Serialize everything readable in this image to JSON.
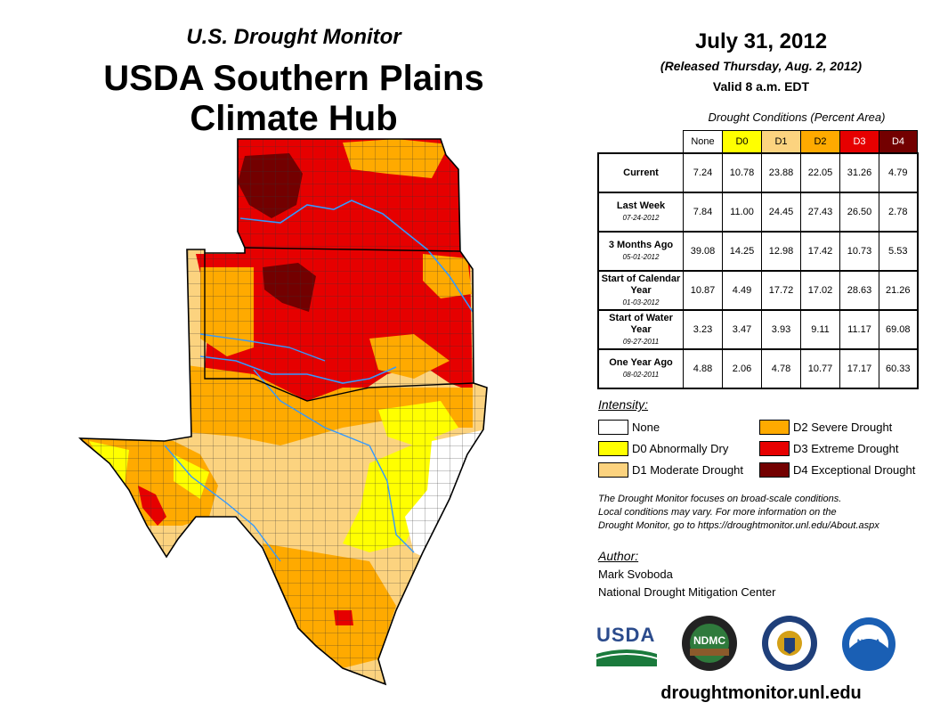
{
  "header": {
    "series": "U.S. Drought Monitor",
    "title_line1": "USDA Southern Plains",
    "title_line2": "Climate Hub"
  },
  "info": {
    "date": "July 31, 2012",
    "released": "(Released Thursday, Aug. 2, 2012)",
    "valid": "Valid 8 a.m. EDT"
  },
  "table": {
    "caption": "Drought Conditions (Percent Area)",
    "columns": [
      "None",
      "D0",
      "D1",
      "D2",
      "D3",
      "D4"
    ],
    "rows": [
      {
        "label": "Current",
        "date": "",
        "values": [
          "7.24",
          "10.78",
          "23.88",
          "22.05",
          "31.26",
          "4.79"
        ]
      },
      {
        "label": "Last Week",
        "date": "07-24-2012",
        "values": [
          "7.84",
          "11.00",
          "24.45",
          "27.43",
          "26.50",
          "2.78"
        ]
      },
      {
        "label": "3 Months Ago",
        "date": "05-01-2012",
        "values": [
          "39.08",
          "14.25",
          "12.98",
          "17.42",
          "10.73",
          "5.53"
        ]
      },
      {
        "label": "Start of Calendar Year",
        "date": "01-03-2012",
        "values": [
          "10.87",
          "4.49",
          "17.72",
          "17.02",
          "28.63",
          "21.26"
        ]
      },
      {
        "label": "Start of Water Year",
        "date": "09-27-2011",
        "values": [
          "3.23",
          "3.47",
          "3.93",
          "9.11",
          "11.17",
          "69.08"
        ]
      },
      {
        "label": "One Year Ago",
        "date": "08-02-2011",
        "values": [
          "4.88",
          "2.06",
          "4.78",
          "10.77",
          "17.17",
          "60.33"
        ]
      }
    ]
  },
  "legend": {
    "title": "Intensity:",
    "items": [
      {
        "label": "None",
        "color": "#ffffff"
      },
      {
        "label": "D0 Abnormally Dry",
        "color": "#ffff00"
      },
      {
        "label": "D1 Moderate Drought",
        "color": "#fcd37f"
      },
      {
        "label": "D2 Severe Drought",
        "color": "#ffaa00"
      },
      {
        "label": "D3 Extreme Drought",
        "color": "#e60000"
      },
      {
        "label": "D4 Exceptional Drought",
        "color": "#730000"
      }
    ]
  },
  "note": {
    "line1": "The Drought Monitor focuses on broad-scale conditions.",
    "line2": "Local conditions may vary. For more information on the",
    "line3": "Drought Monitor, go to https://droughtmonitor.unl.edu/About.aspx"
  },
  "author": {
    "heading": "Author:",
    "name": "Mark Svoboda",
    "org": "National Drought Mitigation Center"
  },
  "logos": {
    "usda": "USDA",
    "ndmc": "NDMC",
    "noaa": "NOAA"
  },
  "footer": {
    "url": "droughtmonitor.unl.edu"
  }
}
